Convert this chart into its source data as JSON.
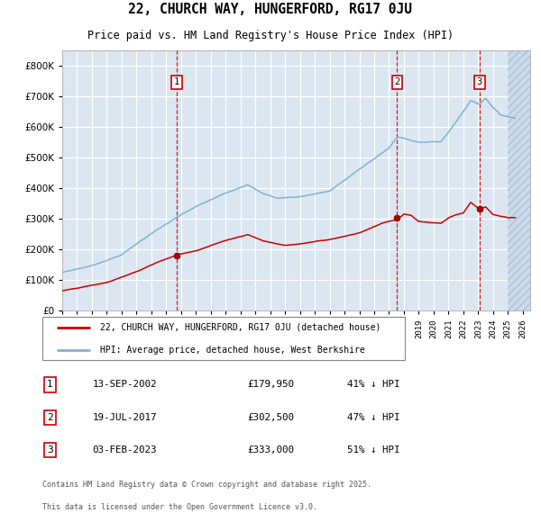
{
  "title1": "22, CHURCH WAY, HUNGERFORD, RG17 0JU",
  "title2": "Price paid vs. HM Land Registry's House Price Index (HPI)",
  "bg_color": "#dce6f1",
  "grid_color": "#ffffff",
  "red_line_color": "#cc0000",
  "blue_line_color": "#7fb3d3",
  "dashed_line_color": "#cc0000",
  "transactions": [
    {
      "num": 1,
      "date_label": "13-SEP-2002",
      "date_x": 2002.71,
      "price": 179950,
      "hpi_pct": "41% ↓ HPI"
    },
    {
      "num": 2,
      "date_label": "19-JUL-2017",
      "date_x": 2017.54,
      "price": 302500,
      "hpi_pct": "47% ↓ HPI"
    },
    {
      "num": 3,
      "date_label": "03-FEB-2023",
      "date_x": 2023.09,
      "price": 333000,
      "hpi_pct": "51% ↓ HPI"
    }
  ],
  "legend_entries": [
    "22, CHURCH WAY, HUNGERFORD, RG17 0JU (detached house)",
    "HPI: Average price, detached house, West Berkshire"
  ],
  "footnote1": "Contains HM Land Registry data © Crown copyright and database right 2025.",
  "footnote2": "This data is licensed under the Open Government Licence v3.0.",
  "ylim": [
    0,
    850000
  ],
  "xlim_start": 1995.0,
  "xlim_end": 2026.5,
  "hatch_start": 2025.0
}
